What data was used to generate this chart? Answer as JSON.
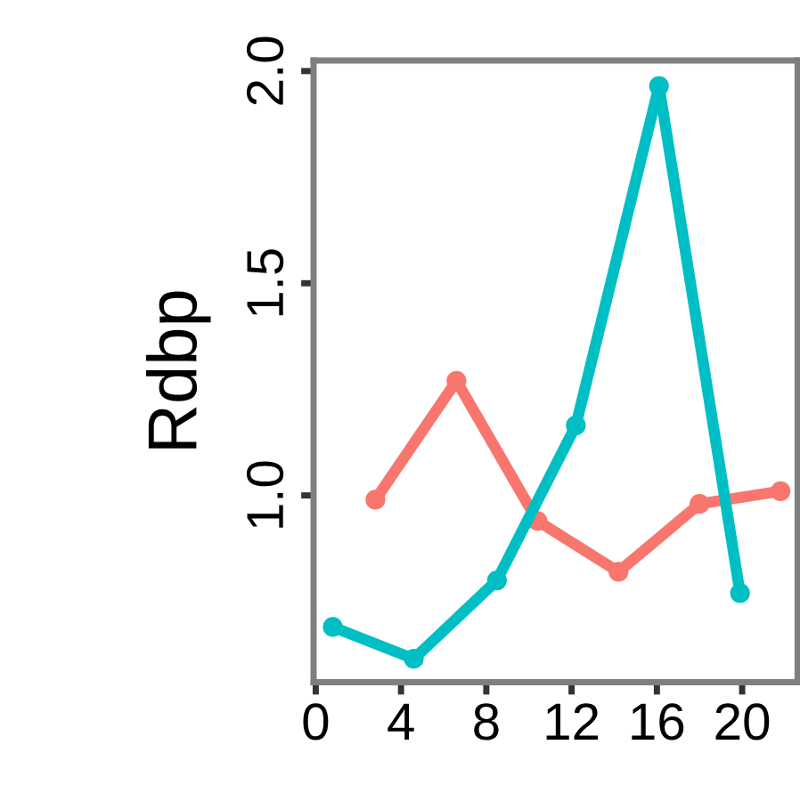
{
  "chart_data": {
    "type": "line",
    "ylabel": "Rdbp",
    "series": [
      {
        "color": "#f8766d",
        "x": [
          2.8,
          6.6,
          10.4,
          14.2,
          18.0,
          21.8
        ],
        "values": [
          0.99,
          1.27,
          0.94,
          0.82,
          0.98,
          1.01
        ]
      },
      {
        "color": "#00bfc4",
        "x": [
          0.8,
          4.6,
          8.5,
          12.2,
          16.1,
          19.9
        ],
        "values": [
          0.69,
          0.615,
          0.8,
          1.165,
          1.965,
          0.77
        ]
      }
    ],
    "xlim": [
      -0.1,
      22.6
    ],
    "xticks": [
      0,
      4,
      8,
      12,
      16,
      20
    ],
    "ylim": [
      0.56,
      2.025
    ],
    "yticks": [
      {
        "value": 1.0,
        "label": "1.0"
      },
      {
        "value": 1.5,
        "label": "1.5"
      },
      {
        "value": 2.0,
        "label": "2.0"
      }
    ],
    "grid": false,
    "legend": false,
    "marker": "circle",
    "line_style": "solid"
  }
}
